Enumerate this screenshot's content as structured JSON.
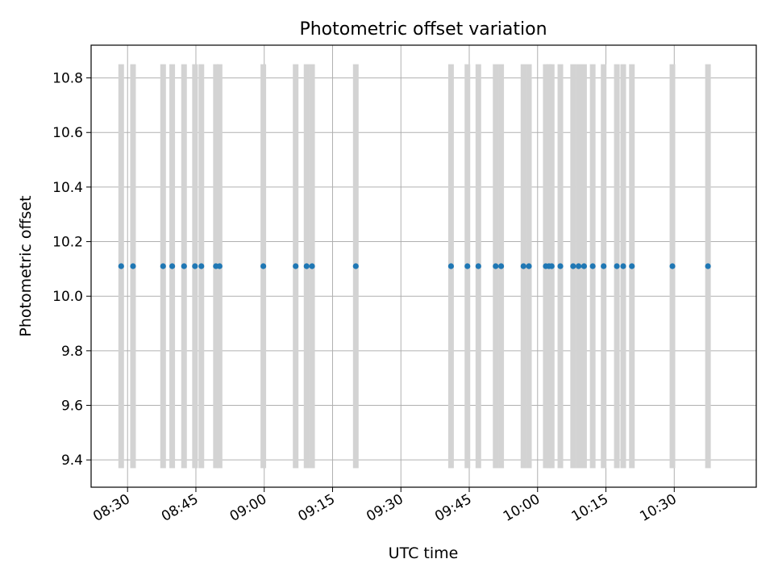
{
  "chart_data": {
    "type": "scatter",
    "title": "Photometric offset variation",
    "xlabel": "UTC time",
    "ylabel": "Photometric offset",
    "x_axis_type": "time",
    "xlim": [
      "08:22",
      "10:48"
    ],
    "ylim": [
      9.3,
      10.92
    ],
    "grid": true,
    "x_tick_labels": [
      "08:30",
      "08:45",
      "09:00",
      "09:15",
      "09:30",
      "09:45",
      "10:00",
      "10:15",
      "10:30"
    ],
    "y_ticks": [
      9.4,
      9.6,
      9.8,
      10.0,
      10.2,
      10.4,
      10.6,
      10.8
    ],
    "y_tick_labels": [
      "9.4",
      "9.6",
      "9.8",
      "10.0",
      "10.2",
      "10.4",
      "10.6",
      "10.8"
    ],
    "error_bar": {
      "low": 9.37,
      "high": 10.85
    },
    "series": [
      {
        "marker_color": "#1f77b4",
        "errorbar_color": "#d3d3d3",
        "points": [
          {
            "x": "08:28:36",
            "y": 10.11
          },
          {
            "x": "08:31:12",
            "y": 10.11
          },
          {
            "x": "08:37:48",
            "y": 10.11
          },
          {
            "x": "08:39:48",
            "y": 10.11
          },
          {
            "x": "08:42:24",
            "y": 10.11
          },
          {
            "x": "08:44:48",
            "y": 10.11
          },
          {
            "x": "08:46:12",
            "y": 10.11
          },
          {
            "x": "08:49:24",
            "y": 10.11
          },
          {
            "x": "08:50:12",
            "y": 10.11
          },
          {
            "x": "08:59:48",
            "y": 10.11
          },
          {
            "x": "09:06:54",
            "y": 10.11
          },
          {
            "x": "09:09:18",
            "y": 10.11
          },
          {
            "x": "09:10:30",
            "y": 10.11
          },
          {
            "x": "09:20:06",
            "y": 10.11
          },
          {
            "x": "09:41:00",
            "y": 10.11
          },
          {
            "x": "09:44:36",
            "y": 10.11
          },
          {
            "x": "09:47:00",
            "y": 10.11
          },
          {
            "x": "09:50:48",
            "y": 10.11
          },
          {
            "x": "09:52:00",
            "y": 10.11
          },
          {
            "x": "09:56:54",
            "y": 10.11
          },
          {
            "x": "09:58:06",
            "y": 10.11
          },
          {
            "x": "10:01:48",
            "y": 10.11
          },
          {
            "x": "10:02:30",
            "y": 10.11
          },
          {
            "x": "10:03:06",
            "y": 10.11
          },
          {
            "x": "10:05:00",
            "y": 10.11
          },
          {
            "x": "10:07:48",
            "y": 10.11
          },
          {
            "x": "10:09:00",
            "y": 10.11
          },
          {
            "x": "10:10:12",
            "y": 10.11
          },
          {
            "x": "10:12:06",
            "y": 10.11
          },
          {
            "x": "10:14:30",
            "y": 10.11
          },
          {
            "x": "10:17:24",
            "y": 10.11
          },
          {
            "x": "10:18:48",
            "y": 10.11
          },
          {
            "x": "10:20:42",
            "y": 10.11
          },
          {
            "x": "10:29:36",
            "y": 10.11
          },
          {
            "x": "10:37:24",
            "y": 10.11
          }
        ]
      }
    ]
  }
}
